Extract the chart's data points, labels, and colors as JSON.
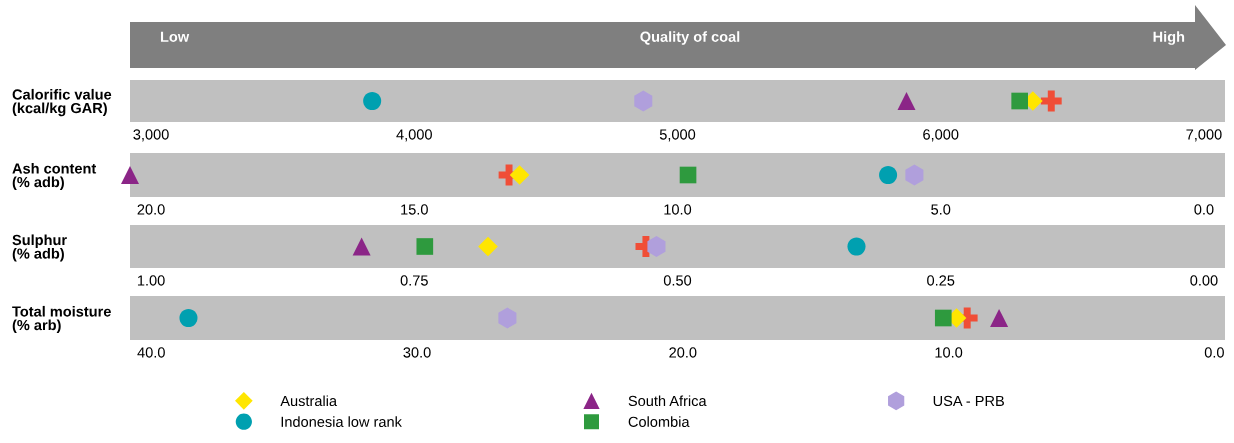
{
  "chart_data": [
    {
      "type": "scatter",
      "orientation": "horizontal",
      "categories": [
        "Calorific value\n(kcal/kg GAR)"
      ],
      "annotations": [
        "Low",
        "Quality of coal",
        "High"
      ],
      "xlim": [
        2920,
        7080
      ],
      "xticks": [
        {
          "value": 3000,
          "label": "3,000"
        },
        {
          "value": 4000,
          "label": "4,000"
        },
        {
          "value": 5000,
          "label": "5,000"
        },
        {
          "value": 6000,
          "label": "6,000"
        },
        {
          "value": 7000,
          "label": "7,000"
        }
      ],
      "grid": false,
      "legend": false,
      "bands": [
        {
          "axis": "x",
          "from": 2920,
          "to": 7080,
          "color": "#c0c0c0"
        }
      ],
      "series": [
        {
          "color": "#f04e37",
          "marker": "cross",
          "values": [
            6420
          ]
        },
        {
          "color": "#ffe600",
          "marker": "diamond",
          "values": [
            6350
          ]
        },
        {
          "color": "#00a0b0",
          "marker": "circle",
          "values": [
            3840
          ]
        },
        {
          "color": "#8b2587",
          "marker": "triangle",
          "values": [
            5870
          ]
        },
        {
          "color": "#2e9a3e",
          "marker": "square",
          "values": [
            6300
          ]
        },
        {
          "color": "#b09fdc",
          "values": [
            4870
          ]
        }
      ]
    },
    {
      "type": "scatter",
      "orientation": "horizontal",
      "categories": [
        "Ash content\n(% adb)"
      ],
      "xlim": [
        20.4,
        -0.4
      ],
      "xticks": [
        {
          "value": 20,
          "label": "20.0"
        },
        {
          "value": 15,
          "label": "15.0"
        },
        {
          "value": 10,
          "label": "10.0"
        },
        {
          "value": 5,
          "label": "5.0"
        },
        {
          "value": 0,
          "label": "0.0"
        }
      ],
      "grid": false,
      "legend": false,
      "bands": [
        {
          "axis": "x",
          "from": 20.4,
          "to": -0.4,
          "color": "#c0c0c0"
        }
      ],
      "series": [
        {
          "color": "#f04e37",
          "marker": "cross",
          "values": [
            13.2
          ]
        },
        {
          "color": "#ffe600",
          "marker": "diamond",
          "values": [
            13.0
          ]
        },
        {
          "color": "#00a0b0",
          "marker": "circle",
          "values": [
            6.0
          ]
        },
        {
          "color": "#8b2587",
          "marker": "triangle",
          "values": [
            20.4
          ]
        },
        {
          "color": "#2e9a3e",
          "marker": "square",
          "values": [
            9.8
          ]
        },
        {
          "color": "#b09fdc",
          "values": [
            5.5
          ]
        }
      ]
    },
    {
      "type": "scatter",
      "orientation": "horizontal",
      "categories": [
        "Sulphur\n(% adb)"
      ],
      "xlim": [
        1.02,
        -0.02
      ],
      "xticks": [
        {
          "value": 1,
          "label": "1.00"
        },
        {
          "value": 0.75,
          "label": "0.75"
        },
        {
          "value": 0.5,
          "label": "0.50"
        },
        {
          "value": 0.25,
          "label": "0.25"
        },
        {
          "value": 0,
          "label": "0.00"
        }
      ],
      "grid": false,
      "legend": false,
      "bands": [
        {
          "axis": "x",
          "from": 1.02,
          "to": -0.02,
          "color": "#c0c0c0"
        }
      ],
      "series": [
        {
          "color": "#f04e37",
          "marker": "cross",
          "values": [
            0.53
          ]
        },
        {
          "color": "#ffe600",
          "marker": "diamond",
          "values": [
            0.68
          ]
        },
        {
          "color": "#00a0b0",
          "marker": "circle",
          "values": [
            0.33
          ]
        },
        {
          "color": "#8b2587",
          "marker": "triangle",
          "values": [
            0.8
          ]
        },
        {
          "color": "#2e9a3e",
          "marker": "square",
          "values": [
            0.74
          ]
        },
        {
          "color": "#b09fdc",
          "values": [
            0.52
          ]
        }
      ]
    },
    {
      "type": "scatter",
      "orientation": "horizontal",
      "categories": [
        "Total moisture\n(% arb)"
      ],
      "xlim": [
        40.8,
        -0.4
      ],
      "xticks": [
        {
          "value": 40,
          "label": "40.0"
        },
        {
          "value": 30,
          "label": "30.0"
        },
        {
          "value": 20,
          "label": "20.0"
        },
        {
          "value": 10,
          "label": "10.0"
        },
        {
          "value": 0,
          "label": "0.0"
        }
      ],
      "grid": false,
      "legend": "bottom",
      "bands": [
        {
          "axis": "x",
          "from": 40.8,
          "to": -0.4,
          "color": "#c0c0c0"
        }
      ],
      "series": [
        {
          "color": "#f04e37",
          "marker": "cross",
          "values": [
            9.3
          ]
        },
        {
          "name": "Australia",
          "color": "#ffe600",
          "marker": "diamond",
          "values": [
            9.7
          ]
        },
        {
          "name": "Indonesia low rank",
          "color": "#00a0b0",
          "marker": "circle",
          "values": [
            38.6
          ]
        },
        {
          "name": "South Africa",
          "color": "#8b2587",
          "marker": "triangle",
          "values": [
            8.1
          ]
        },
        {
          "name": "Colombia",
          "color": "#2e9a3e",
          "marker": "square",
          "values": [
            10.2
          ]
        },
        {
          "name": "USA - PRB",
          "color": "#b09fdc",
          "values": [
            26.6
          ]
        }
      ]
    }
  ]
}
